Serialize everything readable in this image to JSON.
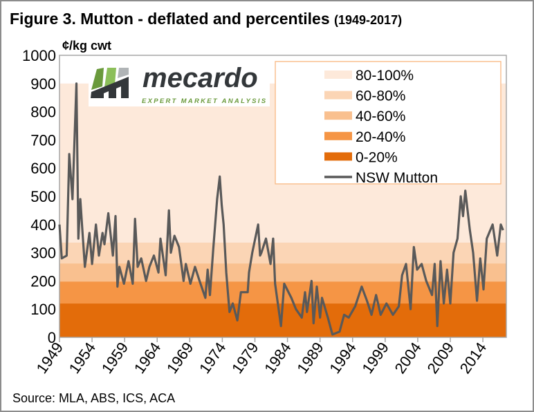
{
  "title": "Figure 3. Mutton - deflated and percentiles",
  "title_suffix": "(1949-2017)",
  "source": "Source:  MLA, ABS, ICS, ACA",
  "logo": {
    "name": "mecardo",
    "tagline": "EXPERT MARKET ANALYSIS",
    "colors": [
      "#6a9a3c",
      "#8cbf5a",
      "#b0b4b6",
      "#33373a"
    ]
  },
  "chart_data": {
    "type": "line",
    "ylabel": "¢/kg cwt",
    "ylim": [
      0,
      1000
    ],
    "yticks": [
      0,
      100,
      200,
      300,
      400,
      500,
      600,
      700,
      800,
      900,
      1000
    ],
    "xlim": [
      1949,
      2017.6
    ],
    "xticks": [
      1949,
      1954,
      1959,
      1964,
      1969,
      1974,
      1979,
      1984,
      1989,
      1994,
      1999,
      2004,
      2009,
      2014
    ],
    "grid": false,
    "legend": "top-right",
    "bands": [
      {
        "name": "80-100%",
        "from": 336,
        "to": 900,
        "color": "#fde9da"
      },
      {
        "name": "60-80%",
        "from": 262,
        "to": 336,
        "color": "#fbd5b5"
      },
      {
        "name": "40-60%",
        "from": 198,
        "to": 262,
        "color": "#f9c08f"
      },
      {
        "name": "20-40%",
        "from": 120,
        "to": 198,
        "color": "#f59545"
      },
      {
        "name": "0-20%",
        "from": 0,
        "to": 120,
        "color": "#e36c0a"
      }
    ],
    "series": [
      {
        "name": "NSW Mutton",
        "color": "#595959",
        "x": [
          1949.0,
          1949.35,
          1950.1,
          1950.5,
          1951.0,
          1951.6,
          1951.9,
          1952.2,
          1952.6,
          1952.9,
          1953.6,
          1954.0,
          1954.6,
          1955.05,
          1955.6,
          1955.9,
          1956.5,
          1957.2,
          1957.6,
          1957.9,
          1958.2,
          1958.9,
          1959.6,
          1960.25,
          1960.6,
          1961.0,
          1961.55,
          1962.3,
          1962.8,
          1963.5,
          1964.2,
          1964.5,
          1965.3,
          1965.8,
          1966.1,
          1966.65,
          1967.35,
          1968.05,
          1968.4,
          1969.1,
          1969.8,
          1970.5,
          1971.4,
          1971.75,
          1972.1,
          1972.6,
          1973.2,
          1973.6,
          1973.9,
          1974.2,
          1974.6,
          1975.1,
          1975.6,
          1976.3,
          1976.85,
          1977.9,
          1978.1,
          1978.6,
          1979.5,
          1979.8,
          1980.0,
          1980.7,
          1981.4,
          1981.8,
          1982.1,
          1983.0,
          1983.5,
          1984.6,
          1985.3,
          1986.2,
          1986.7,
          1987.0,
          1987.7,
          1988.0,
          1988.5,
          1989.0,
          1989.3,
          1990.2,
          1990.9,
          1992.0,
          1992.7,
          1993.4,
          1994.4,
          1995.4,
          1996.2,
          1996.9,
          1997.6,
          1998.3,
          1999.2,
          2000.2,
          2001.1,
          2001.6,
          2002.2,
          2002.9,
          2003.4,
          2003.9,
          2004.6,
          2005.3,
          2006.2,
          2006.6,
          2007.0,
          2007.5,
          2008.0,
          2008.5,
          2009.0,
          2009.5,
          2010.1,
          2010.6,
          2010.95,
          2011.3,
          2012.0,
          2012.5,
          2013.1,
          2013.6,
          2014.1,
          2014.6,
          2015.5,
          2016.2,
          2016.75,
          2017.1
        ],
        "values": [
          400,
          280,
          290,
          650,
          490,
          900,
          350,
          490,
          350,
          250,
          370,
          260,
          400,
          290,
          370,
          330,
          440,
          290,
          430,
          180,
          250,
          190,
          270,
          190,
          420,
          250,
          280,
          200,
          250,
          290,
          230,
          350,
          220,
          450,
          300,
          360,
          320,
          200,
          260,
          190,
          250,
          200,
          140,
          240,
          150,
          310,
          490,
          570,
          470,
          400,
          230,
          90,
          120,
          60,
          160,
          160,
          230,
          300,
          400,
          290,
          300,
          350,
          260,
          350,
          190,
          40,
          190,
          140,
          100,
          70,
          160,
          90,
          200,
          50,
          180,
          70,
          140,
          70,
          10,
          20,
          80,
          70,
          110,
          180,
          130,
          80,
          150,
          80,
          120,
          80,
          110,
          220,
          260,
          100,
          320,
          240,
          260,
          200,
          150,
          260,
          40,
          270,
          120,
          240,
          120,
          300,
          350,
          500,
          430,
          520,
          380,
          300,
          130,
          280,
          170,
          350,
          400,
          290,
          400,
          380
        ]
      }
    ]
  }
}
